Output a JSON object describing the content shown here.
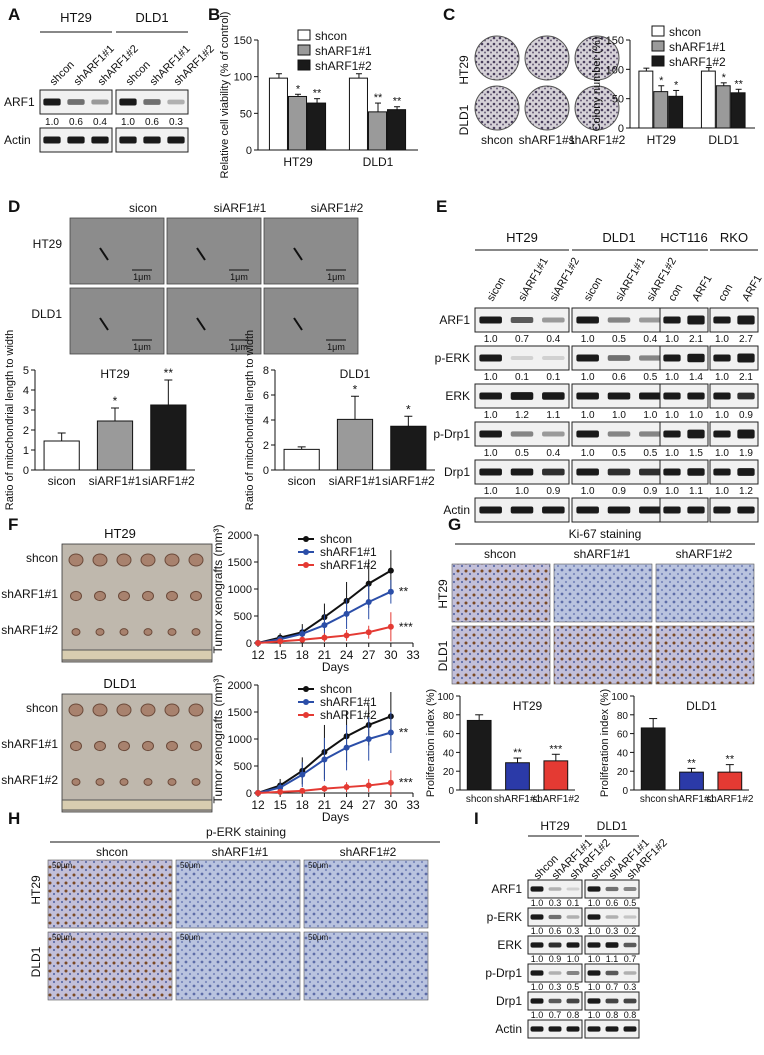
{
  "panels": {
    "A": {
      "label": "A",
      "cell_lines": [
        "HT29",
        "DLD1"
      ],
      "lanes": [
        "shcon",
        "shARF1#1",
        "shARF1#2"
      ],
      "rows": [
        {
          "name": "ARF1",
          "quant": [
            "1.0",
            "0.6",
            "0.4",
            "1.0",
            "0.6",
            "0.3"
          ]
        },
        {
          "name": "Actin",
          "quant": []
        }
      ]
    },
    "B": {
      "label": "B",
      "chart_data": {
        "type": "bar",
        "ylabel": "Relative cell viability (% of control)",
        "categories": [
          "HT29",
          "DLD1"
        ],
        "ylim": [
          0,
          150
        ],
        "yticks": [
          "0",
          "50",
          "100",
          "150"
        ],
        "series": [
          {
            "name": "shcon",
            "values": [
              98,
              98
            ],
            "err": [
              6,
              6
            ],
            "color": "#ffffff"
          },
          {
            "name": "shARF1#1",
            "values": [
              73,
              52
            ],
            "err": [
              3,
              12
            ],
            "color": "#9a9a9a",
            "sig": [
              "*",
              "**"
            ]
          },
          {
            "name": "shARF1#2",
            "values": [
              64,
              55
            ],
            "err": [
              6,
              4
            ],
            "color": "#1a1a1a",
            "sig": [
              "**",
              "**"
            ]
          }
        ]
      }
    },
    "C": {
      "label": "C",
      "rows": [
        "HT29",
        "DLD1"
      ],
      "cols": [
        "shcon",
        "shARF1#1",
        "shARF1#2"
      ],
      "chart_data": {
        "type": "bar",
        "ylabel": "Colony number (%)",
        "categories": [
          "HT29",
          "DLD1"
        ],
        "ylim": [
          0,
          150
        ],
        "yticks": [
          "0",
          "50",
          "100",
          "150"
        ],
        "series": [
          {
            "name": "shcon",
            "values": [
              97,
              97
            ],
            "err": [
              5,
              6
            ],
            "color": "#ffffff"
          },
          {
            "name": "shARF1#1",
            "values": [
              62,
              72
            ],
            "err": [
              10,
              5
            ],
            "color": "#9a9a9a",
            "sig": [
              "*",
              "*"
            ]
          },
          {
            "name": "shARF1#2",
            "values": [
              54,
              60
            ],
            "err": [
              10,
              6
            ],
            "color": "#1a1a1a",
            "sig": [
              "*",
              "**"
            ]
          }
        ]
      }
    },
    "D": {
      "label": "D",
      "cols": [
        "sicon",
        "siARF1#1",
        "siARF1#2"
      ],
      "rows": [
        "HT29",
        "DLD1"
      ],
      "scale": "1μm",
      "charts": [
        {
          "type": "bar",
          "title": "HT29",
          "ylabel": "Ratio of mitochondrial length to width",
          "categories": [
            "sicon",
            "siARF1#1",
            "siARF1#2"
          ],
          "values": [
            1.45,
            2.45,
            3.25
          ],
          "err": [
            0.4,
            0.65,
            1.25
          ],
          "sig": [
            "",
            "*",
            "**"
          ],
          "colors": [
            "#ffffff",
            "#9a9a9a",
            "#1a1a1a"
          ],
          "ylim": [
            0,
            5
          ],
          "yticks": [
            "0",
            "1",
            "2",
            "3",
            "4",
            "5"
          ]
        },
        {
          "type": "bar",
          "title": "DLD1",
          "ylabel": "Ratio of mitochondrial length to width",
          "categories": [
            "sicon",
            "siARF1#1",
            "siARF1#2"
          ],
          "values": [
            1.65,
            4.05,
            3.5
          ],
          "err": [
            0.2,
            1.85,
            0.8
          ],
          "sig": [
            "",
            "*",
            "*"
          ],
          "colors": [
            "#ffffff",
            "#9a9a9a",
            "#1a1a1a"
          ],
          "ylim": [
            0,
            8
          ],
          "yticks": [
            "0",
            "2",
            "4",
            "6",
            "8"
          ]
        }
      ]
    },
    "E": {
      "label": "E",
      "groups": [
        {
          "name": "HT29",
          "lanes": [
            "sicon",
            "siARF1#1",
            "siARF1#2"
          ]
        },
        {
          "name": "DLD1",
          "lanes": [
            "sicon",
            "siARF1#1",
            "siARF1#2"
          ]
        },
        {
          "name": "HCT116",
          "lanes": [
            "con",
            "ARF1"
          ]
        },
        {
          "name": "RKO",
          "lanes": [
            "con",
            "ARF1"
          ]
        }
      ],
      "rows": [
        {
          "name": "ARF1",
          "quant": [
            [
              "1.0",
              "0.7",
              "0.4"
            ],
            [
              "1.0",
              "0.5",
              "0.4"
            ],
            [
              "1.0",
              "2.1"
            ],
            [
              "1.0",
              "2.7"
            ]
          ]
        },
        {
          "name": "p-ERK",
          "quant": [
            [
              "1.0",
              "0.1",
              "0.1"
            ],
            [
              "1.0",
              "0.6",
              "0.5"
            ],
            [
              "1.0",
              "1.4"
            ],
            [
              "1.0",
              "2.1"
            ]
          ]
        },
        {
          "name": "ERK",
          "quant": [
            [
              "1.0",
              "1.2",
              "1.1"
            ],
            [
              "1.0",
              "1.0",
              "1.0"
            ],
            [
              "1.0",
              "1.0"
            ],
            [
              "1.0",
              "0.9"
            ]
          ]
        },
        {
          "name": "p-Drp1",
          "quant": [
            [
              "1.0",
              "0.5",
              "0.4"
            ],
            [
              "1.0",
              "0.5",
              "0.5"
            ],
            [
              "1.0",
              "1.5"
            ],
            [
              "1.0",
              "1.9"
            ]
          ]
        },
        {
          "name": "Drp1",
          "quant": [
            [
              "1.0",
              "1.0",
              "0.9"
            ],
            [
              "1.0",
              "0.9",
              "0.9"
            ],
            [
              "1.0",
              "1.1"
            ],
            [
              "1.0",
              "1.2"
            ]
          ]
        },
        {
          "name": "Actin",
          "quant": []
        }
      ]
    },
    "F": {
      "label": "F",
      "photos": [
        {
          "title": "HT29",
          "rows": [
            "shcon",
            "shARF1#1",
            "shARF1#2"
          ]
        },
        {
          "title": "DLD1",
          "rows": [
            "shcon",
            "shARF1#1",
            "shARF1#2"
          ]
        }
      ],
      "charts": [
        {
          "type": "line",
          "xlabel": "Days",
          "ylabel": "Tumor xenografts (mm³)",
          "x": [
            12,
            15,
            18,
            21,
            24,
            27,
            30
          ],
          "xlim": [
            12,
            33
          ],
          "xticks": [
            "12",
            "15",
            "18",
            "21",
            "24",
            "27",
            "30",
            "33"
          ],
          "ylim": [
            0,
            2000
          ],
          "yticks": [
            "0",
            "500",
            "1000",
            "1500",
            "2000"
          ],
          "series": [
            {
              "name": "shcon",
              "color": "#111111",
              "values": [
                0,
                100,
                200,
                480,
                780,
                1100,
                1340
              ],
              "err": [
                0,
                80,
                150,
                250,
                350,
                450,
                380
              ],
              "sig": ""
            },
            {
              "name": "shARF1#1",
              "color": "#2b4ea8",
              "values": [
                0,
                70,
                170,
                330,
                540,
                760,
                950
              ],
              "err": [
                0,
                50,
                100,
                200,
                280,
                320,
                220
              ],
              "sig": "**"
            },
            {
              "name": "shARF1#2",
              "color": "#e43a33",
              "values": [
                0,
                30,
                60,
                100,
                140,
                200,
                300
              ],
              "err": [
                0,
                20,
                40,
                80,
                100,
                120,
                270
              ],
              "sig": "***"
            }
          ]
        },
        {
          "type": "line",
          "xlabel": "Days",
          "ylabel": "Tumor xenografts (mm³)",
          "x": [
            12,
            15,
            18,
            21,
            24,
            27,
            30
          ],
          "xlim": [
            12,
            33
          ],
          "xticks": [
            "12",
            "15",
            "18",
            "21",
            "24",
            "27",
            "30",
            "33"
          ],
          "ylim": [
            0,
            2000
          ],
          "yticks": [
            "0",
            "500",
            "1000",
            "1500",
            "2000"
          ],
          "series": [
            {
              "name": "shcon",
              "color": "#111111",
              "values": [
                0,
                140,
                410,
                760,
                1050,
                1260,
                1420
              ],
              "err": [
                0,
                120,
                250,
                500,
                480,
                380,
                450
              ],
              "sig": ""
            },
            {
              "name": "shARF1#1",
              "color": "#2b4ea8",
              "values": [
                0,
                100,
                340,
                620,
                840,
                1000,
                1120
              ],
              "err": [
                0,
                90,
                230,
                400,
                420,
                400,
                380
              ],
              "sig": "**"
            },
            {
              "name": "shARF1#2",
              "color": "#e43a33",
              "values": [
                0,
                20,
                40,
                80,
                110,
                140,
                190
              ],
              "err": [
                0,
                15,
                30,
                60,
                90,
                120,
                230
              ],
              "sig": "***"
            }
          ]
        }
      ]
    },
    "G": {
      "label": "G",
      "title": "Ki-67 staining",
      "cols": [
        "shcon",
        "shARF1#1",
        "shARF1#2"
      ],
      "rows": [
        "HT29",
        "DLD1"
      ],
      "charts": [
        {
          "type": "bar",
          "title": "HT29",
          "ylabel": "Proliferation index (%)",
          "categories": [
            "shcon",
            "shARF1#1",
            "shARF1#2"
          ],
          "values": [
            74,
            29,
            31
          ],
          "err": [
            6,
            5,
            7
          ],
          "sig": [
            "",
            "**",
            "***"
          ],
          "colors": [
            "#1a1a1a",
            "#2b3aa8",
            "#e43a33"
          ],
          "ylim": [
            0,
            100
          ],
          "yticks": [
            "0",
            "20",
            "40",
            "60",
            "80",
            "100"
          ]
        },
        {
          "type": "bar",
          "title": "DLD1",
          "ylabel": "Proliferation index (%)",
          "categories": [
            "shcon",
            "shARF1#1",
            "shARF1#2"
          ],
          "values": [
            66,
            19,
            19
          ],
          "err": [
            10,
            4,
            8
          ],
          "sig": [
            "",
            "**",
            "**"
          ],
          "colors": [
            "#1a1a1a",
            "#2b3aa8",
            "#e43a33"
          ],
          "ylim": [
            0,
            100
          ],
          "yticks": [
            "0",
            "20",
            "40",
            "60",
            "80",
            "100"
          ]
        }
      ]
    },
    "H": {
      "label": "H",
      "title": "p-ERK staining",
      "cols": [
        "shcon",
        "shARF1#1",
        "shARF1#2"
      ],
      "rows": [
        "HT29",
        "DLD1"
      ],
      "scale": "50μm"
    },
    "I": {
      "label": "I",
      "cell_lines": [
        "HT29",
        "DLD1"
      ],
      "lanes": [
        "shcon",
        "shARF1#1",
        "shARF1#2"
      ],
      "rows": [
        {
          "name": "ARF1",
          "quant": [
            "1.0",
            "0.3",
            "0.1",
            "1.0",
            "0.6",
            "0.5"
          ]
        },
        {
          "name": "p-ERK",
          "quant": [
            "1.0",
            "0.6",
            "0.3",
            "1.0",
            "0.3",
            "0.2"
          ]
        },
        {
          "name": "ERK",
          "quant": [
            "1.0",
            "0.9",
            "1.0",
            "1.0",
            "1.1",
            "0.7"
          ]
        },
        {
          "name": "p-Drp1",
          "quant": [
            "1.0",
            "0.3",
            "0.5",
            "1.0",
            "0.7",
            "0.3"
          ]
        },
        {
          "name": "Drp1",
          "quant": [
            "1.0",
            "0.7",
            "0.8",
            "1.0",
            "0.8",
            "0.8"
          ]
        },
        {
          "name": "Actin",
          "quant": []
        }
      ]
    }
  },
  "colors": {
    "white": "#ffffff",
    "grey": "#9a9a9a",
    "black": "#1a1a1a",
    "blue": "#2b4ea8",
    "red": "#e43a33"
  }
}
